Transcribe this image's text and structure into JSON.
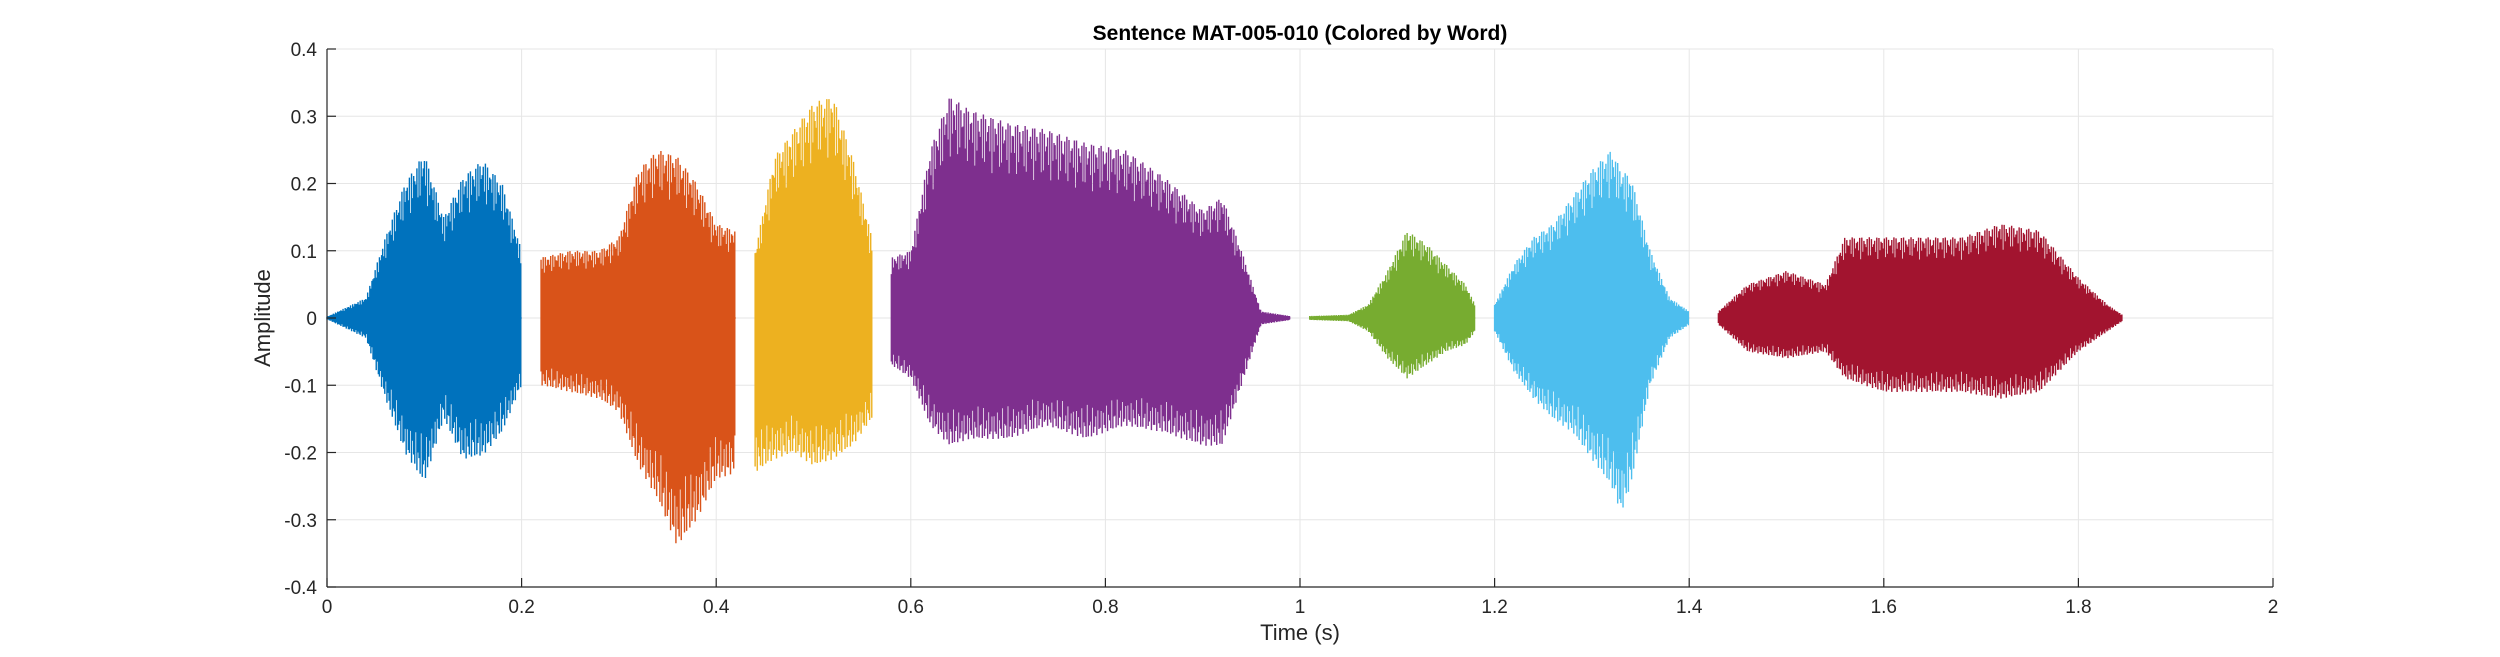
{
  "chart_data": {
    "type": "line",
    "title": "Sentence MAT-005-010 (Colored by Word)",
    "xlabel": "Time (s)",
    "ylabel": "Amplitude",
    "xlim": [
      0,
      2
    ],
    "ylim": [
      -0.4,
      0.4
    ],
    "xticks": [
      0,
      0.2,
      0.4,
      0.6,
      0.8,
      1,
      1.2,
      1.4,
      1.6,
      1.8,
      2
    ],
    "xtick_labels": [
      "0",
      "0.2",
      "0.4",
      "0.6",
      "0.8",
      "1",
      "1.2",
      "1.4",
      "1.6",
      "1.8",
      "2"
    ],
    "yticks": [
      -0.4,
      -0.3,
      -0.2,
      -0.1,
      0,
      0.1,
      0.2,
      0.3,
      0.4
    ],
    "ytick_labels": [
      "-0.4",
      "-0.3",
      "-0.2",
      "-0.1",
      "0",
      "0.1",
      "0.2",
      "0.3",
      "0.4"
    ],
    "grid": true,
    "series": [
      {
        "color": "#0072BD",
        "x": [
          0.0,
          0.04,
          0.06,
          0.08,
          0.1,
          0.12,
          0.14,
          0.16,
          0.18,
          0.2
        ],
        "upper": [
          0.002,
          0.03,
          0.12,
          0.2,
          0.245,
          0.15,
          0.21,
          0.235,
          0.2,
          0.1
        ],
        "lower": [
          -0.002,
          -0.03,
          -0.12,
          -0.2,
          -0.245,
          -0.15,
          -0.21,
          -0.205,
          -0.17,
          -0.1
        ]
      },
      {
        "color": "#D95319",
        "x": [
          0.22,
          0.25,
          0.28,
          0.3,
          0.32,
          0.34,
          0.36,
          0.38,
          0.4,
          0.42
        ],
        "upper": [
          0.09,
          0.1,
          0.1,
          0.12,
          0.22,
          0.25,
          0.24,
          0.2,
          0.14,
          0.13
        ],
        "lower": [
          -0.1,
          -0.11,
          -0.12,
          -0.14,
          -0.22,
          -0.27,
          -0.34,
          -0.3,
          -0.24,
          -0.23
        ]
      },
      {
        "color": "#EDB120",
        "x": [
          0.44,
          0.46,
          0.48,
          0.5,
          0.52,
          0.54,
          0.56
        ],
        "upper": [
          0.1,
          0.24,
          0.28,
          0.32,
          0.33,
          0.24,
          0.12
        ],
        "lower": [
          -0.23,
          -0.21,
          -0.2,
          -0.22,
          -0.21,
          -0.19,
          -0.15
        ]
      },
      {
        "color": "#7E2F8E",
        "x": [
          0.58,
          0.6,
          0.62,
          0.64,
          0.66,
          0.7,
          0.74,
          0.78,
          0.82,
          0.86,
          0.9,
          0.92,
          0.94,
          0.96,
          0.99
        ],
        "upper": [
          0.09,
          0.1,
          0.25,
          0.33,
          0.31,
          0.29,
          0.28,
          0.26,
          0.25,
          0.21,
          0.16,
          0.18,
          0.1,
          0.01,
          0.003
        ],
        "lower": [
          -0.07,
          -0.09,
          -0.16,
          -0.19,
          -0.18,
          -0.18,
          -0.16,
          -0.18,
          -0.16,
          -0.17,
          -0.19,
          -0.19,
          -0.1,
          -0.01,
          -0.003
        ]
      },
      {
        "color": "#77AC30",
        "x": [
          1.01,
          1.03,
          1.05,
          1.07,
          1.09,
          1.11,
          1.13,
          1.15,
          1.17,
          1.18
        ],
        "upper": [
          0.003,
          0.004,
          0.005,
          0.02,
          0.07,
          0.13,
          0.11,
          0.08,
          0.05,
          0.02
        ],
        "lower": [
          -0.003,
          -0.004,
          -0.005,
          -0.02,
          -0.06,
          -0.09,
          -0.07,
          -0.05,
          -0.04,
          -0.02
        ]
      },
      {
        "color": "#4DBEEE",
        "x": [
          1.2,
          1.22,
          1.24,
          1.26,
          1.28,
          1.3,
          1.32,
          1.33,
          1.34,
          1.36,
          1.38,
          1.4
        ],
        "upper": [
          0.02,
          0.08,
          0.12,
          0.14,
          0.18,
          0.22,
          0.25,
          0.22,
          0.21,
          0.1,
          0.03,
          0.01
        ],
        "lower": [
          -0.02,
          -0.08,
          -0.12,
          -0.15,
          -0.17,
          -0.21,
          -0.25,
          -0.29,
          -0.25,
          -0.1,
          -0.03,
          -0.01
        ]
      },
      {
        "color": "#A2142F",
        "x": [
          1.43,
          1.46,
          1.5,
          1.54,
          1.56,
          1.6,
          1.64,
          1.68,
          1.72,
          1.76,
          1.8,
          1.83,
          1.845
        ],
        "upper": [
          0.01,
          0.05,
          0.07,
          0.05,
          0.12,
          0.12,
          0.12,
          0.12,
          0.14,
          0.13,
          0.06,
          0.02,
          0.005
        ],
        "lower": [
          -0.01,
          -0.05,
          -0.06,
          -0.05,
          -0.09,
          -0.11,
          -0.11,
          -0.11,
          -0.12,
          -0.11,
          -0.05,
          -0.02,
          -0.005
        ]
      }
    ]
  }
}
